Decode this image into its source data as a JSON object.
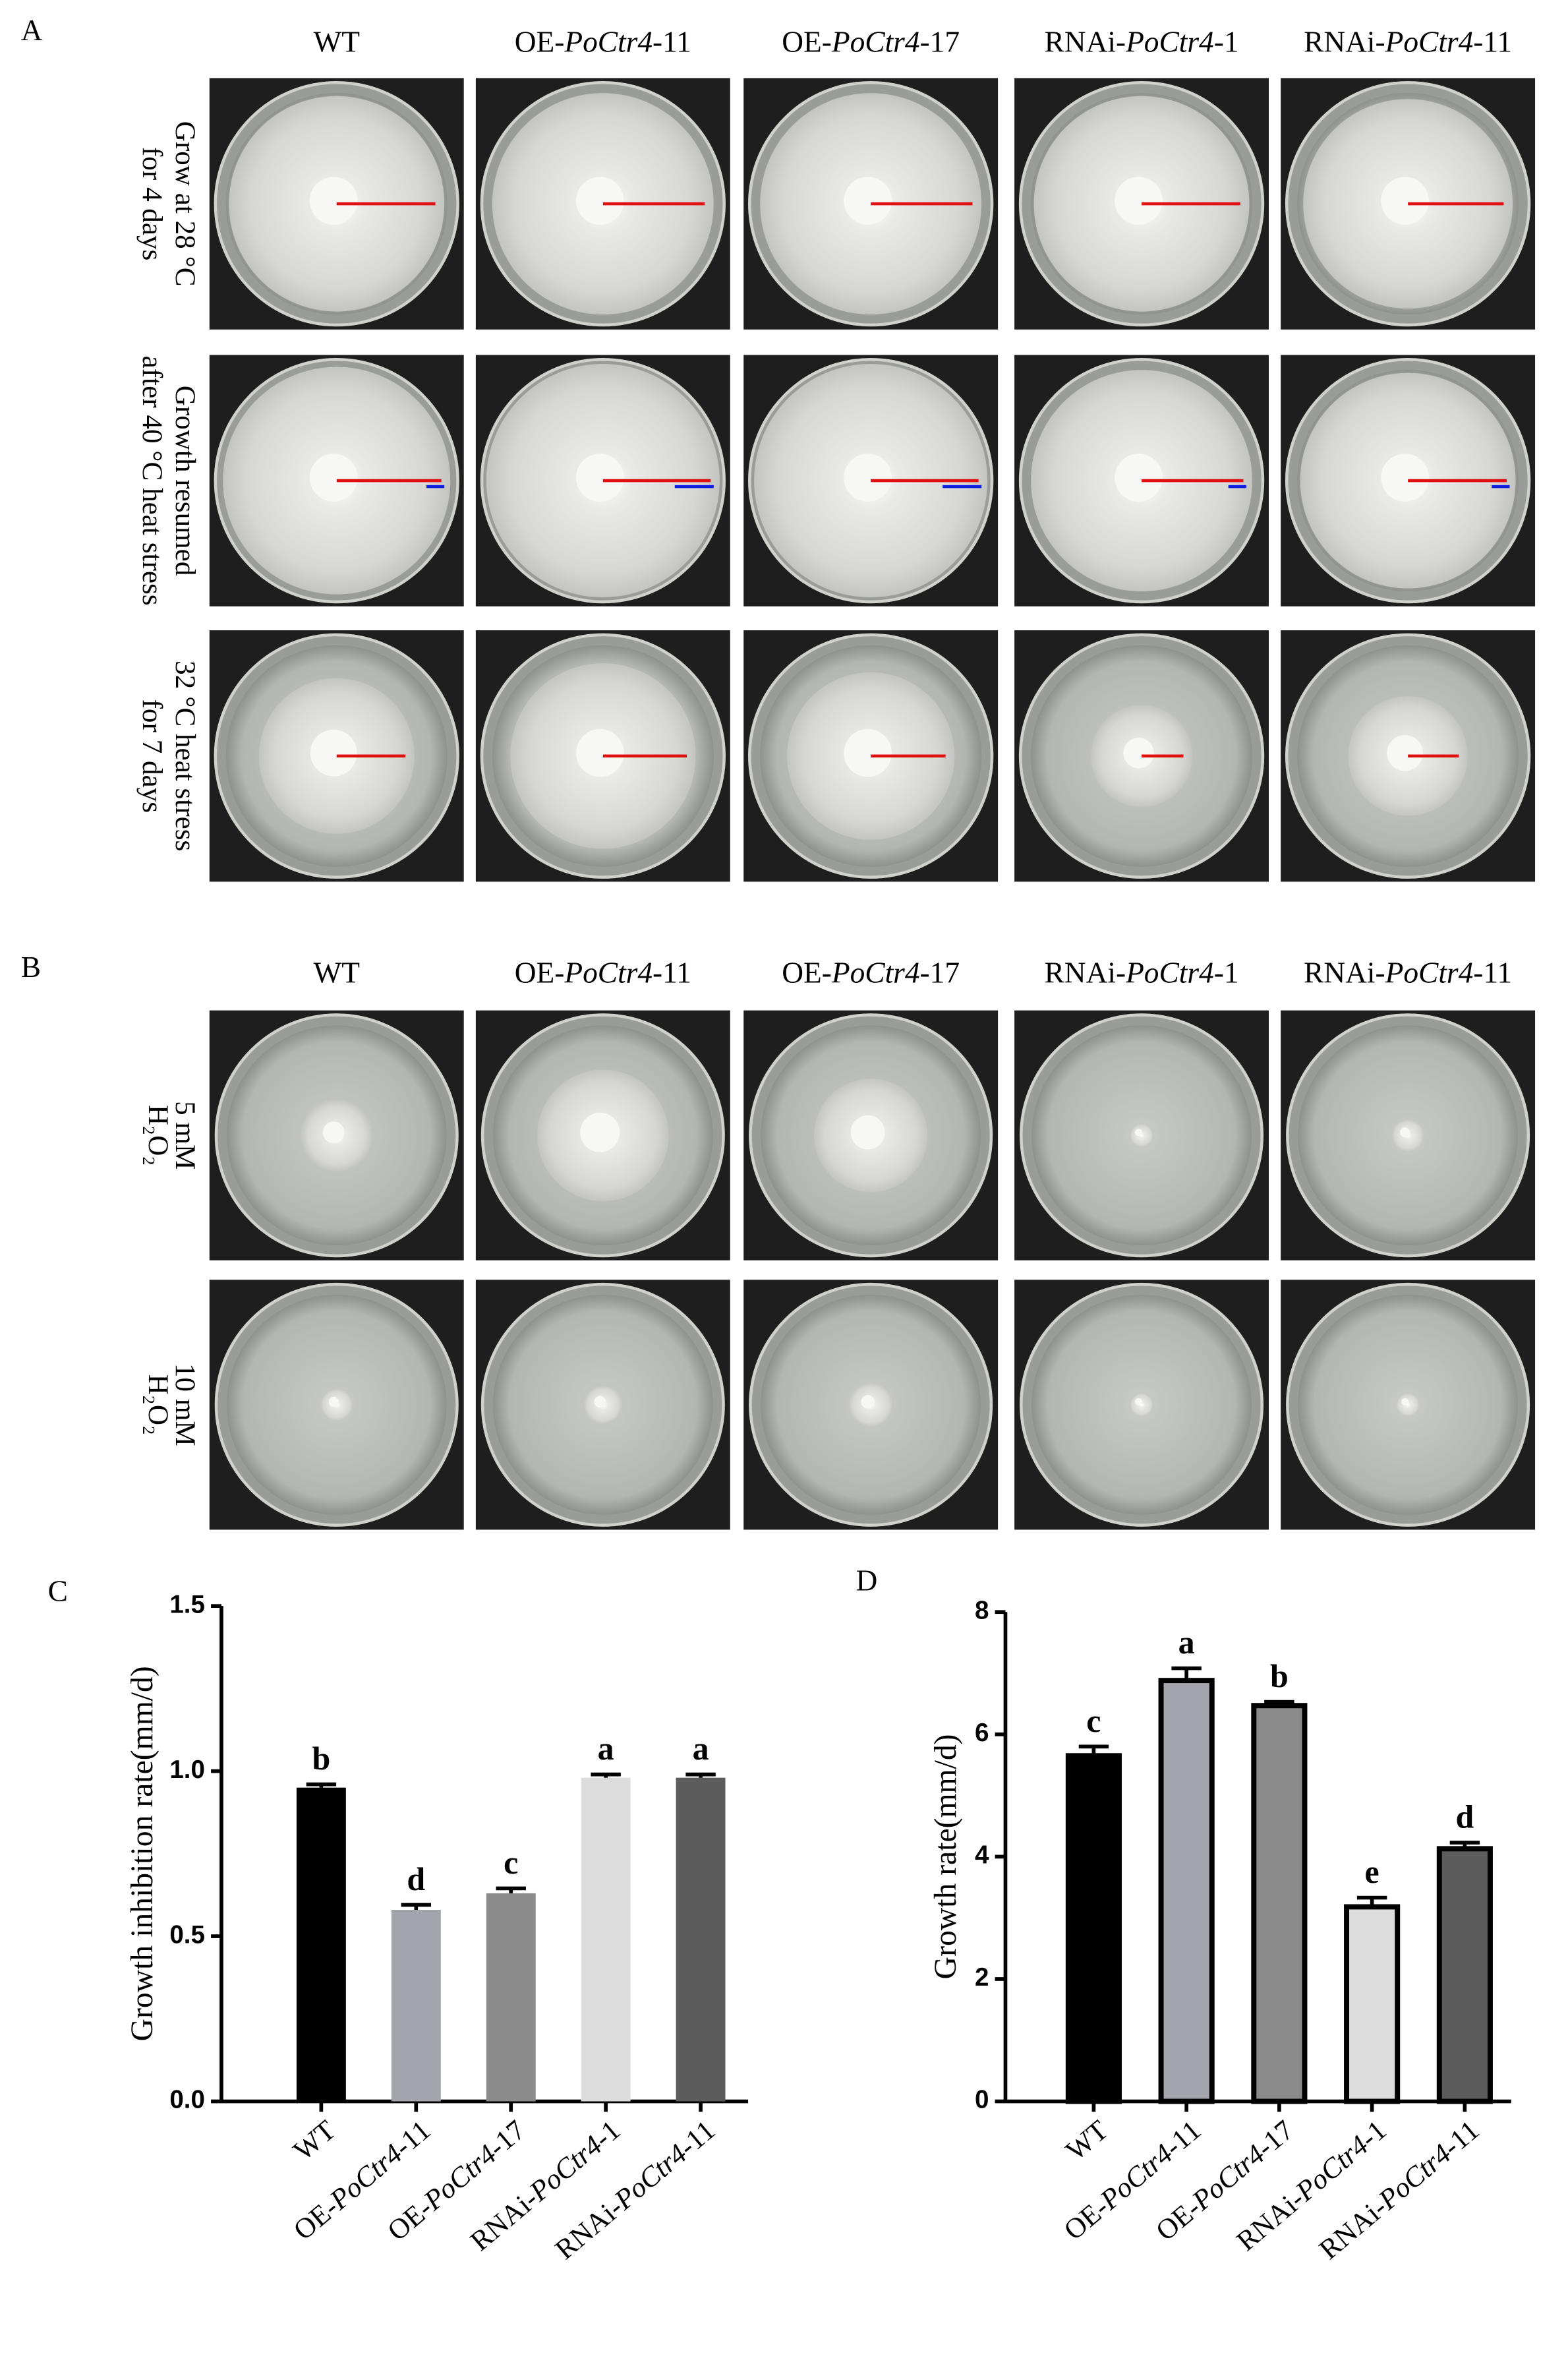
{
  "panel_a": {
    "label": "A",
    "columns": [
      [
        "WT"
      ],
      [
        "OE-",
        "PoCtr4",
        "-11"
      ],
      [
        "OE-",
        "PoCtr4",
        "-17"
      ],
      [
        "RNAi-",
        "PoCtr4",
        "-1"
      ],
      [
        "RNAi-",
        "PoCtr4",
        "-11"
      ]
    ],
    "rows": [
      [
        "Grow at 28 °C",
        "for 4 days"
      ],
      [
        "Growth resumed",
        "after 40 °C heat stress"
      ],
      [
        "32 °C heat stress",
        "for 7 days"
      ]
    ]
  },
  "panel_b": {
    "label": "B",
    "columns": [
      [
        "WT"
      ],
      [
        "OE-",
        "PoCtr4",
        "-11"
      ],
      [
        "OE-",
        "PoCtr4",
        "-17"
      ],
      [
        "RNAi-",
        "PoCtr4",
        "-1"
      ],
      [
        "RNAi-",
        "PoCtr4",
        "-11"
      ]
    ],
    "rows": [
      [
        "5 mM",
        "H₂O₂"
      ],
      [
        "10 mM",
        "H₂O₂"
      ]
    ]
  },
  "chart_data": [
    {
      "label": "C",
      "type": "bar",
      "categories": [
        [
          "WT"
        ],
        [
          "OE-",
          "PoCtr4",
          "-11"
        ],
        [
          "OE-",
          "PoCtr4",
          "-17"
        ],
        [
          "RNAi-",
          "PoCtr4",
          "-1"
        ],
        [
          "RNAi-",
          "PoCtr4",
          "-11"
        ]
      ],
      "ylabel": "Growth inhibition rate(mm/d)",
      "values": [
        0.95,
        0.58,
        0.63,
        0.98,
        0.98
      ],
      "errors": [
        0.01,
        0.015,
        0.015,
        0.01,
        0.01
      ],
      "letters": [
        "b",
        "d",
        "c",
        "a",
        "a"
      ],
      "colors": [
        "#000000",
        "#a4a4ac",
        "#8a8a8a",
        "#dcdcdc",
        "#5c5c5c"
      ],
      "ylim": [
        0,
        1.5
      ],
      "yticks": [
        {
          "value": 0,
          "label": "0.0"
        },
        0.5,
        {
          "value": 1,
          "label": "1.0"
        },
        1.5
      ]
    },
    {
      "label": "D",
      "type": "bar",
      "categories": [
        [
          "WT"
        ],
        [
          "OE-",
          "PoCtr4",
          "-11"
        ],
        [
          "OE-",
          "PoCtr4",
          "-17"
        ],
        [
          "RNAi-",
          "PoCtr4",
          "-1"
        ],
        [
          "RNAi-",
          "PoCtr4",
          "-11"
        ]
      ],
      "ylabel": "Growth rate(mm/d)",
      "values": [
        5.65,
        6.88,
        6.47,
        3.18,
        4.13
      ],
      "errors": [
        0.15,
        0.2,
        0.06,
        0.15,
        0.1
      ],
      "letters": [
        "c",
        "a",
        "b",
        "e",
        "d"
      ],
      "colors": [
        "#000000",
        "#a4a4ac",
        "#8a8a8a",
        "#dcdcdc",
        "#5c5c5c"
      ],
      "ylim": [
        0,
        8
      ],
      "yticks": [
        0,
        2,
        4,
        6,
        8
      ]
    }
  ]
}
